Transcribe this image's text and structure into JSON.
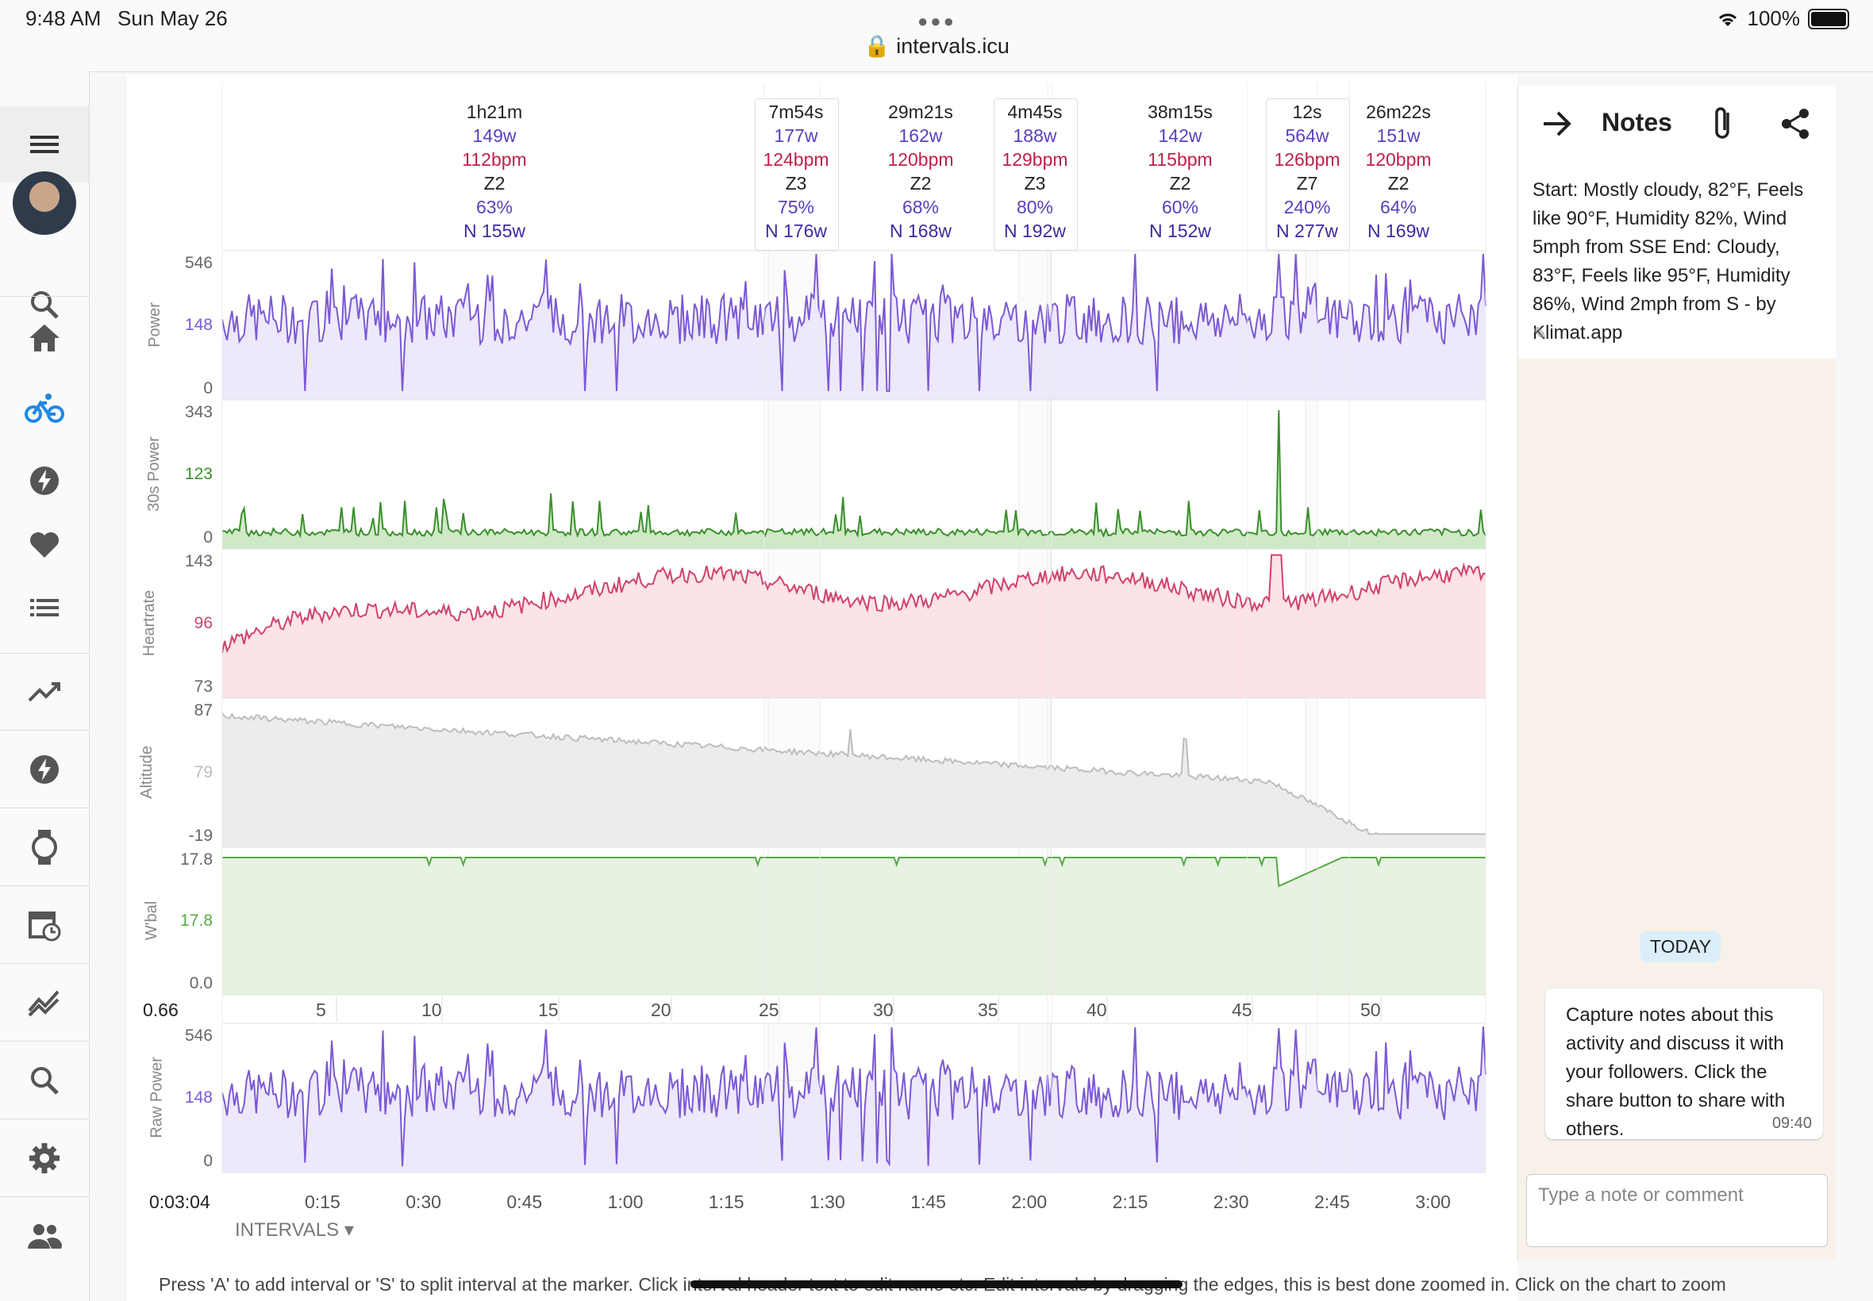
{
  "status": {
    "time": "9:48 AM",
    "date": "Sun May 26",
    "url": "intervals.icu",
    "battery": "100%"
  },
  "sidebar": {
    "items": [
      "menu-icon",
      "search-icon",
      "home-icon",
      "bike-icon",
      "bolt-icon",
      "heart-icon",
      "list-icon",
      "trend-icon",
      "bolt-icon",
      "watch-icon",
      "calendar-icon",
      "chart-compare-icon",
      "search-icon",
      "gear-icon",
      "people-icon"
    ]
  },
  "intervals_header": [
    {
      "duration": "1h21m",
      "power": "149w",
      "hr": "112bpm",
      "zone": "Z2",
      "pct": "63%",
      "np": "N 155w"
    },
    {
      "duration": "7m54s",
      "power": "177w",
      "hr": "124bpm",
      "zone": "Z3",
      "pct": "75%",
      "np": "N 176w"
    },
    {
      "duration": "29m21s",
      "power": "162w",
      "hr": "120bpm",
      "zone": "Z2",
      "pct": "68%",
      "np": "N 168w"
    },
    {
      "duration": "4m45s",
      "power": "188w",
      "hr": "129bpm",
      "zone": "Z3",
      "pct": "80%",
      "np": "N 192w"
    },
    {
      "duration": "38m15s",
      "power": "142w",
      "hr": "115bpm",
      "zone": "Z2",
      "pct": "60%",
      "np": "N 152w"
    },
    {
      "duration": "12s",
      "power": "564w",
      "hr": "126bpm",
      "zone": "Z7",
      "pct": "240%",
      "np": "N 277w"
    },
    {
      "duration": "26m22s",
      "power": "151w",
      "hr": "120bpm",
      "zone": "Z2",
      "pct": "64%",
      "np": "N 169w"
    }
  ],
  "panels": [
    {
      "title": "Power",
      "ticks": [
        "546",
        "148",
        "0"
      ],
      "color": "#7b59d4"
    },
    {
      "title": "30s Power",
      "ticks": [
        "343",
        "123",
        "0"
      ],
      "color": "#3a8f2b"
    },
    {
      "title": "Heartrate",
      "ticks": [
        "143",
        "96",
        "73"
      ],
      "color": "#d0426c"
    },
    {
      "title": "Altitude",
      "ticks": [
        "87",
        "79",
        "-19"
      ],
      "color": "#bdbdbd"
    },
    {
      "title": "W'bal",
      "ticks": [
        "17.8",
        "17.8",
        "0.0"
      ],
      "color": "#55aa44"
    },
    {
      "title": "Raw Power",
      "ticks": [
        "546",
        "148",
        "0"
      ],
      "color": "#7b59d4"
    }
  ],
  "distance_axis": {
    "start": "0.66",
    "labels": [
      "5",
      "10",
      "15",
      "20",
      "25",
      "30",
      "35",
      "40",
      "45",
      "50"
    ]
  },
  "time_axis": {
    "start": "0:03:04",
    "labels": [
      "0:15",
      "0:30",
      "0:45",
      "1:00",
      "1:15",
      "1:30",
      "1:45",
      "2:00",
      "2:15",
      "2:30",
      "2:45",
      "3:00"
    ]
  },
  "intervals_button": "INTERVALS",
  "footer_text": "Press 'A' to add interval or 'S' to split interval at the marker. Click interval header text to edit name etc. Edit intervals by dragging the edges, this is best done zoomed in. Click on the chart to zoom",
  "notes": {
    "title": "Notes",
    "weather": "Start: Mostly cloudy, 82°F, Feels like 90°F, Humidity 82%, Wind 5mph from SSE End: Cloudy, 83°F, Feels like 95°F, Humidity 86%, Wind 2mph from S - by Klimat.app",
    "today_label": "TODAY",
    "bubble_text": "Capture notes about this activity and discuss it with your followers. Click the share button to share with others.",
    "bubble_time": "09:40",
    "comment_placeholder": "Type a note or comment"
  }
}
